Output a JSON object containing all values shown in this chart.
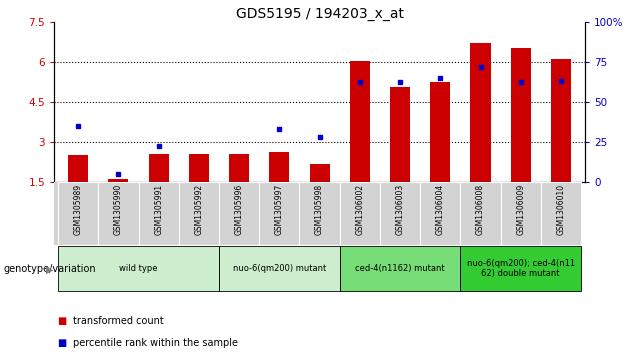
{
  "title": "GDS5195 / 194203_x_at",
  "samples": [
    "GSM1305989",
    "GSM1305990",
    "GSM1305991",
    "GSM1305992",
    "GSM1305996",
    "GSM1305997",
    "GSM1305998",
    "GSM1306002",
    "GSM1306003",
    "GSM1306004",
    "GSM1306008",
    "GSM1306009",
    "GSM1306010"
  ],
  "transformed_count": [
    2.5,
    1.6,
    2.55,
    2.55,
    2.55,
    2.6,
    2.15,
    6.02,
    5.05,
    5.25,
    6.7,
    6.5,
    6.1
  ],
  "percentile_rank": [
    35,
    5,
    22,
    null,
    null,
    33,
    28,
    62,
    62,
    65,
    72,
    62,
    63
  ],
  "ylim_left": [
    1.5,
    7.5
  ],
  "ylim_right": [
    0,
    100
  ],
  "yticks_left": [
    1.5,
    3.0,
    4.5,
    6.0,
    7.5
  ],
  "yticks_right": [
    0,
    25,
    50,
    75,
    100
  ],
  "bar_color": "#cc0000",
  "dot_color": "#0000cc",
  "bar_width": 0.5,
  "plot_bg": "#ffffff",
  "group_starts": [
    0,
    4,
    7,
    10
  ],
  "group_ends": [
    4,
    7,
    10,
    13
  ],
  "group_labels": [
    "wild type",
    "nuo-6(qm200) mutant",
    "ced-4(n1162) mutant",
    "nuo-6(qm200); ced-4(n11\n62) double mutant"
  ],
  "group_colors": [
    "#cceecc",
    "#cceecc",
    "#77dd77",
    "#33cc33"
  ],
  "genotype_label": "genotype/variation",
  "legend_transformed": "transformed count",
  "legend_percentile": "percentile rank within the sample"
}
